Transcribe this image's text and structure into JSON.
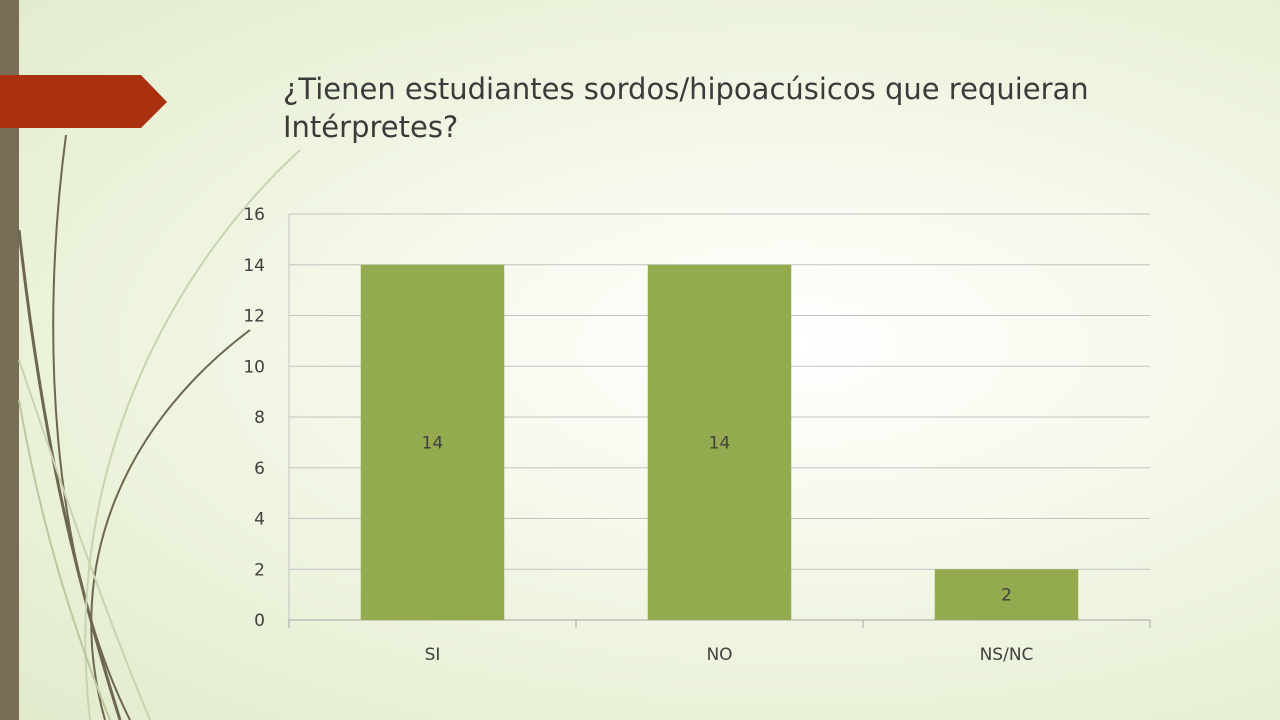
{
  "slide": {
    "title": "¿Tienen estudiantes sordos/hipoacúsicos que requieran Intérpretes?",
    "accent_color": "#a93110",
    "sidebar_color": "#776e55",
    "bar_color": "#93aa4f"
  },
  "chart_data": {
    "type": "bar",
    "title": "",
    "xlabel": "",
    "ylabel": "",
    "categories": [
      "SI",
      "NO",
      "NS/NC"
    ],
    "values": [
      14,
      14,
      2
    ],
    "ylim": [
      0,
      16
    ],
    "yticks": [
      0,
      2,
      4,
      6,
      8,
      10,
      12,
      14,
      16
    ],
    "data_labels": true,
    "grid": true,
    "legend": "none"
  }
}
